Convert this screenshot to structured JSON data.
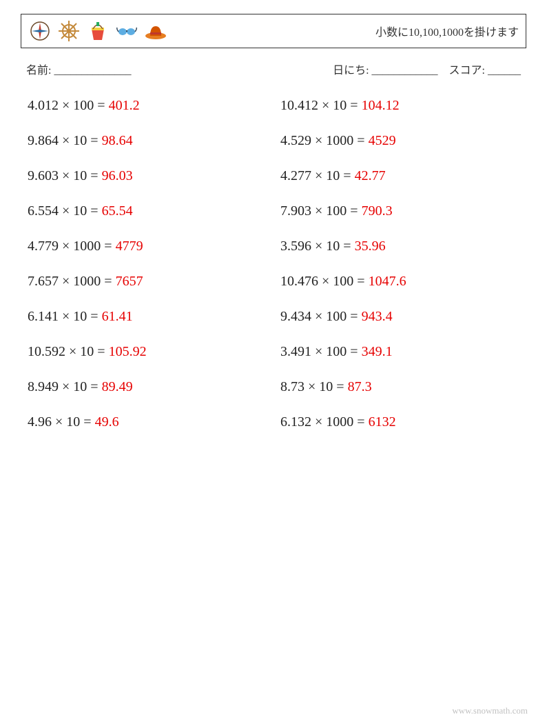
{
  "header": {
    "title": "小数に10,100,1000を掛けます",
    "icons": [
      "compass-icon",
      "ship-wheel-icon",
      "bucket-icon",
      "sunglasses-icon",
      "hat-icon"
    ]
  },
  "info": {
    "name_label": "名前: ______________",
    "date_label": "日にち: ____________",
    "score_label": "スコア: ______"
  },
  "problems_left": [
    {
      "expr": "4.012 × 100 = ",
      "ans": "401.2"
    },
    {
      "expr": "9.864 × 10 = ",
      "ans": "98.64"
    },
    {
      "expr": "9.603 × 10 = ",
      "ans": "96.03"
    },
    {
      "expr": "6.554 × 10 = ",
      "ans": "65.54"
    },
    {
      "expr": "4.779 × 1000 = ",
      "ans": "4779"
    },
    {
      "expr": "7.657 × 1000 = ",
      "ans": "7657"
    },
    {
      "expr": "6.141 × 10 = ",
      "ans": "61.41"
    },
    {
      "expr": "10.592 × 10 = ",
      "ans": "105.92"
    },
    {
      "expr": "8.949 × 10 = ",
      "ans": "89.49"
    },
    {
      "expr": "4.96 × 10 = ",
      "ans": "49.6"
    }
  ],
  "problems_right": [
    {
      "expr": "10.412 × 10 = ",
      "ans": "104.12"
    },
    {
      "expr": "4.529 × 1000 = ",
      "ans": "4529"
    },
    {
      "expr": "4.277 × 10 = ",
      "ans": "42.77"
    },
    {
      "expr": "7.903 × 100 = ",
      "ans": "790.3"
    },
    {
      "expr": "3.596 × 10 = ",
      "ans": "35.96"
    },
    {
      "expr": "10.476 × 100 = ",
      "ans": "1047.6"
    },
    {
      "expr": "9.434 × 100 = ",
      "ans": "943.4"
    },
    {
      "expr": "3.491 × 100 = ",
      "ans": "349.1"
    },
    {
      "expr": "8.73 × 10 = ",
      "ans": "87.3"
    },
    {
      "expr": "6.132 × 1000 = ",
      "ans": "6132"
    }
  ],
  "watermark": "",
  "footer": "www.snowmath.com",
  "colors": {
    "answer": "#e60000",
    "text": "#222222",
    "border": "#333333",
    "background": "#ffffff"
  }
}
